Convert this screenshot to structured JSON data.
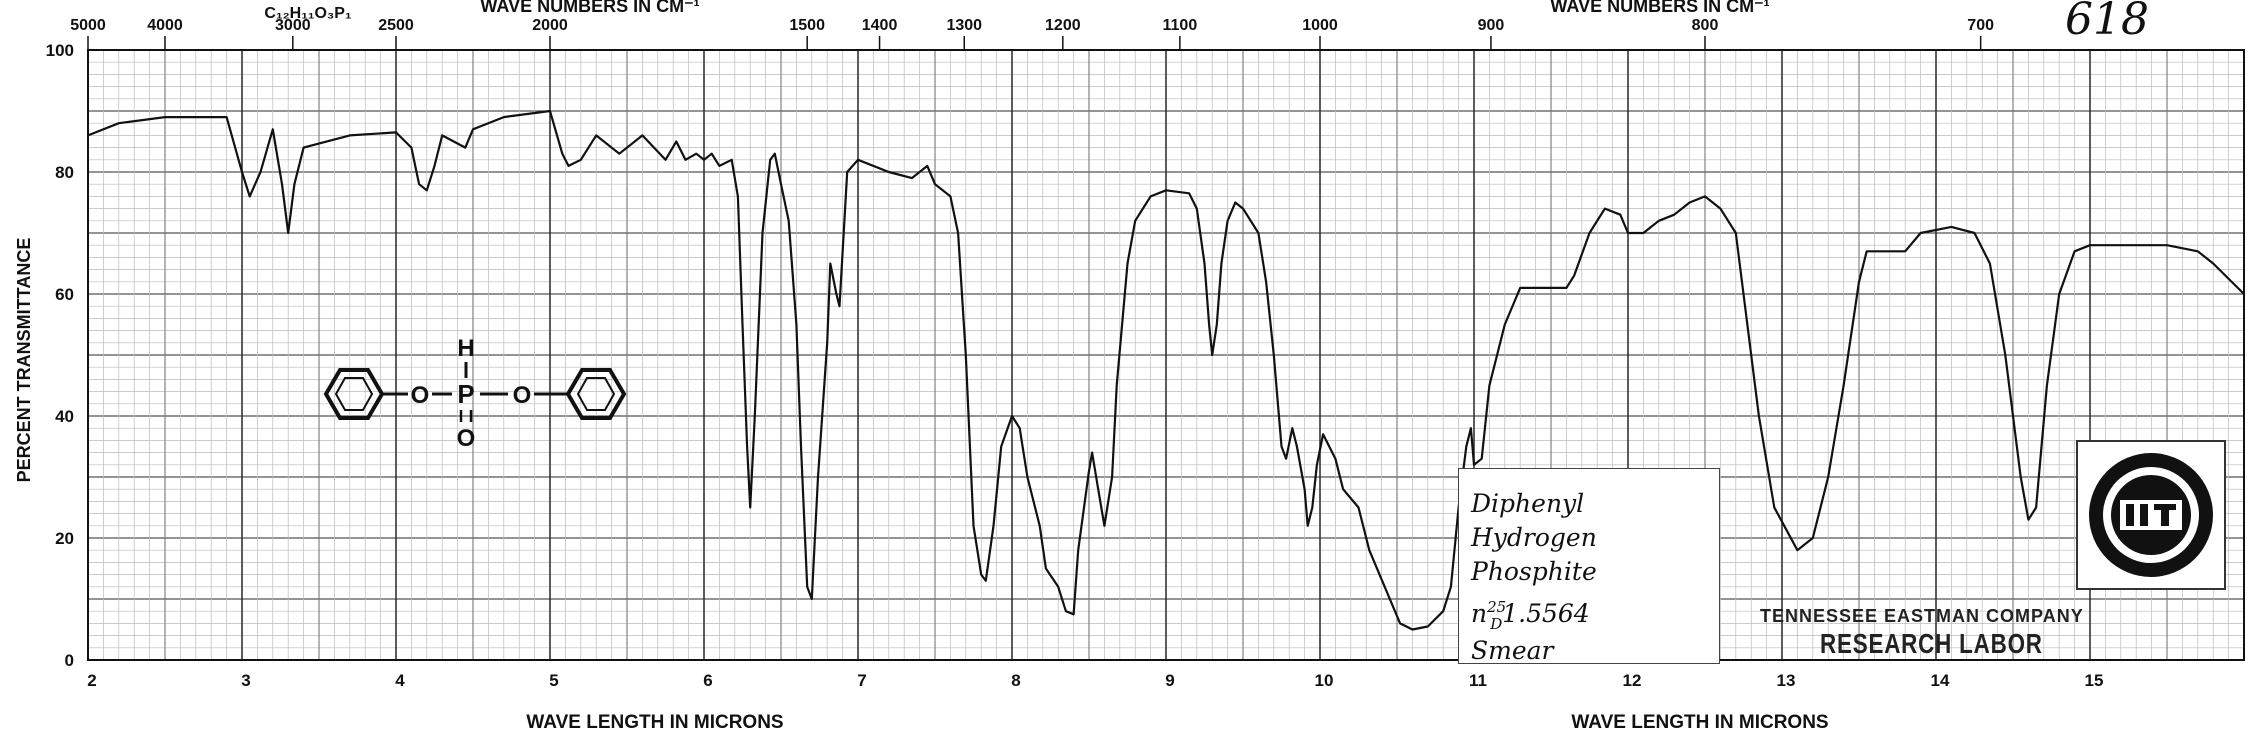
{
  "chart_data": {
    "type": "line",
    "title": "",
    "xlabel": "WAVE LENGTH IN MICRONS",
    "xlabel_right": "WAVE LENGTH IN MICRONS",
    "ylabel": "PERCENT TRANSMITTANCE",
    "top_label_left": "WAVE NUMBERS IN CM⁻¹",
    "top_label_right": "WAVE NUMBERS IN CM⁻¹",
    "formula": "C₁₂H₁₁O₃P₁",
    "sheet_number": "618",
    "xlim": [
      2,
      16
    ],
    "ylim": [
      0,
      100
    ],
    "x_ticks": [
      "2",
      "3",
      "4",
      "5",
      "6",
      "7",
      "8",
      "9",
      "10",
      "11",
      "12",
      "13",
      "14",
      "15"
    ],
    "y_ticks": [
      "0",
      "20",
      "40",
      "60",
      "80",
      "100"
    ],
    "top_ticks": [
      {
        "label": "5000",
        "um": 2.0
      },
      {
        "label": "4000",
        "um": 2.5
      },
      {
        "label": "3000",
        "um": 3.33
      },
      {
        "label": "2500",
        "um": 4.0
      },
      {
        "label": "2000",
        "um": 5.0
      },
      {
        "label": "1500",
        "um": 6.67
      },
      {
        "label": "1400",
        "um": 7.14
      },
      {
        "label": "1300",
        "um": 7.69
      },
      {
        "label": "1200",
        "um": 8.33
      },
      {
        "label": "1100",
        "um": 9.09
      },
      {
        "label": "1000",
        "um": 10.0
      },
      {
        "label": "900",
        "um": 11.11
      },
      {
        "label": "800",
        "um": 12.5
      },
      {
        "label": "700",
        "um": 14.29
      }
    ],
    "grid": true,
    "series": [
      {
        "color": "#111111",
        "points": [
          [
            2.0,
            86
          ],
          [
            2.2,
            88
          ],
          [
            2.5,
            89
          ],
          [
            2.9,
            89
          ],
          [
            3.0,
            80
          ],
          [
            3.05,
            76
          ],
          [
            3.12,
            80
          ],
          [
            3.2,
            87
          ],
          [
            3.26,
            78
          ],
          [
            3.3,
            70
          ],
          [
            3.34,
            78
          ],
          [
            3.4,
            84
          ],
          [
            3.7,
            86
          ],
          [
            4.0,
            86.5
          ],
          [
            4.1,
            84
          ],
          [
            4.15,
            78
          ],
          [
            4.2,
            77
          ],
          [
            4.25,
            81
          ],
          [
            4.3,
            86
          ],
          [
            4.45,
            84
          ],
          [
            4.5,
            87
          ],
          [
            4.7,
            89
          ],
          [
            5.0,
            90
          ],
          [
            5.08,
            83
          ],
          [
            5.12,
            81
          ],
          [
            5.2,
            82
          ],
          [
            5.3,
            86
          ],
          [
            5.45,
            83
          ],
          [
            5.6,
            86
          ],
          [
            5.75,
            82
          ],
          [
            5.82,
            85
          ],
          [
            5.88,
            82
          ],
          [
            5.95,
            83
          ],
          [
            6.0,
            82
          ],
          [
            6.05,
            83
          ],
          [
            6.1,
            81
          ],
          [
            6.18,
            82
          ],
          [
            6.22,
            76
          ],
          [
            6.25,
            55
          ],
          [
            6.28,
            35
          ],
          [
            6.3,
            25
          ],
          [
            6.33,
            40
          ],
          [
            6.38,
            70
          ],
          [
            6.43,
            82
          ],
          [
            6.46,
            83
          ],
          [
            6.5,
            78
          ],
          [
            6.55,
            72
          ],
          [
            6.6,
            55
          ],
          [
            6.63,
            35
          ],
          [
            6.67,
            12
          ],
          [
            6.7,
            10
          ],
          [
            6.74,
            30
          ],
          [
            6.8,
            52
          ],
          [
            6.82,
            65
          ],
          [
            6.86,
            60
          ],
          [
            6.88,
            58
          ],
          [
            6.93,
            80
          ],
          [
            7.0,
            82
          ],
          [
            7.2,
            80
          ],
          [
            7.35,
            79
          ],
          [
            7.45,
            81
          ],
          [
            7.5,
            78
          ],
          [
            7.6,
            76
          ],
          [
            7.65,
            70
          ],
          [
            7.7,
            50
          ],
          [
            7.75,
            22
          ],
          [
            7.8,
            14
          ],
          [
            7.83,
            13
          ],
          [
            7.88,
            22
          ],
          [
            7.93,
            35
          ],
          [
            8.0,
            40
          ],
          [
            8.05,
            38
          ],
          [
            8.1,
            30
          ],
          [
            8.18,
            22
          ],
          [
            8.22,
            15
          ],
          [
            8.3,
            12
          ],
          [
            8.35,
            8
          ],
          [
            8.4,
            7.5
          ],
          [
            8.43,
            18
          ],
          [
            8.5,
            31
          ],
          [
            8.52,
            34
          ],
          [
            8.56,
            28
          ],
          [
            8.6,
            22
          ],
          [
            8.65,
            30
          ],
          [
            8.68,
            45
          ],
          [
            8.75,
            65
          ],
          [
            8.8,
            72
          ],
          [
            8.9,
            76
          ],
          [
            9.0,
            77
          ],
          [
            9.15,
            76.5
          ],
          [
            9.2,
            74
          ],
          [
            9.25,
            65
          ],
          [
            9.28,
            55
          ],
          [
            9.3,
            50
          ],
          [
            9.33,
            55
          ],
          [
            9.36,
            65
          ],
          [
            9.4,
            72
          ],
          [
            9.45,
            75
          ],
          [
            9.5,
            74
          ],
          [
            9.6,
            70
          ],
          [
            9.65,
            62
          ],
          [
            9.7,
            50
          ],
          [
            9.75,
            35
          ],
          [
            9.78,
            33
          ],
          [
            9.82,
            38
          ],
          [
            9.85,
            35
          ],
          [
            9.9,
            28
          ],
          [
            9.92,
            22
          ],
          [
            9.95,
            25
          ],
          [
            9.98,
            32
          ],
          [
            10.02,
            37
          ],
          [
            10.1,
            33
          ],
          [
            10.15,
            28
          ],
          [
            10.25,
            25
          ],
          [
            10.32,
            18
          ],
          [
            10.42,
            12
          ],
          [
            10.52,
            6
          ],
          [
            10.6,
            5
          ],
          [
            10.7,
            5.5
          ],
          [
            10.8,
            8
          ],
          [
            10.85,
            12
          ],
          [
            10.9,
            25
          ],
          [
            10.95,
            35
          ],
          [
            10.98,
            38
          ],
          [
            11.0,
            32
          ],
          [
            11.05,
            33
          ],
          [
            11.1,
            45
          ],
          [
            11.2,
            55
          ],
          [
            11.3,
            61
          ],
          [
            11.6,
            61
          ],
          [
            11.65,
            63
          ],
          [
            11.75,
            70
          ],
          [
            11.85,
            74
          ],
          [
            11.95,
            73
          ],
          [
            12.0,
            70
          ],
          [
            12.1,
            70
          ],
          [
            12.2,
            72
          ],
          [
            12.3,
            73
          ],
          [
            12.4,
            75
          ],
          [
            12.5,
            76
          ],
          [
            12.6,
            74
          ],
          [
            12.7,
            70
          ],
          [
            12.75,
            60
          ],
          [
            12.85,
            40
          ],
          [
            12.95,
            25
          ],
          [
            13.1,
            18
          ],
          [
            13.2,
            20
          ],
          [
            13.3,
            30
          ],
          [
            13.4,
            45
          ],
          [
            13.5,
            62
          ],
          [
            13.55,
            67
          ],
          [
            13.8,
            67
          ],
          [
            13.9,
            70
          ],
          [
            14.1,
            71
          ],
          [
            14.25,
            70
          ],
          [
            14.35,
            65
          ],
          [
            14.45,
            50
          ],
          [
            14.55,
            30
          ],
          [
            14.6,
            23
          ],
          [
            14.65,
            25
          ],
          [
            14.72,
            45
          ],
          [
            14.8,
            60
          ],
          [
            14.9,
            67
          ],
          [
            15.0,
            68
          ],
          [
            15.5,
            68
          ],
          [
            15.7,
            67
          ],
          [
            15.8,
            65
          ],
          [
            16.0,
            60
          ]
        ]
      }
    ],
    "annotations": {
      "structure_atoms": [
        "H",
        "P",
        "O",
        "O",
        "O"
      ],
      "note_lines": [
        "Diphenyl Hydrogen",
        "Phosphite",
        "n",
        "25",
        "D",
        "1.5564",
        "Smear"
      ]
    },
    "stamp_lines": [
      "TENNESSEE EASTMAN COMPANY",
      "RESEARCH LABOR"
    ]
  }
}
